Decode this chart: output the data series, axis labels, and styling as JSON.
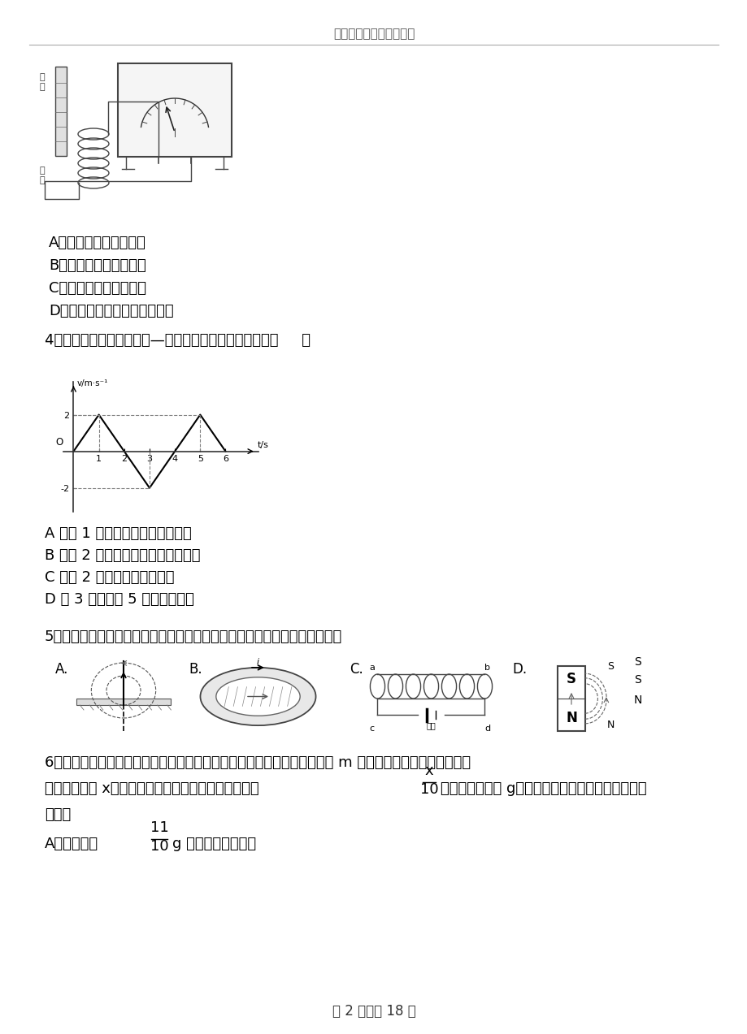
{
  "bg_color": "#ffffff",
  "header_text": "高考模式考试试卷解析版",
  "page_footer": "第 2 页，共 18 页",
  "options_q3": [
    "A．磁铁静止在线圈上方",
    "B．磁铁静止在线圈右侧",
    "C．磁铁静止在线圈里面",
    "D．磁铁插入或抽出线圈的过程"
  ],
  "q4_text": "4．质点作直线运动的速度—时间图像如图所示，该质点（     ）",
  "vt_graph": {
    "t_values": [
      0,
      1,
      3,
      5,
      6
    ],
    "v_values": [
      0,
      2,
      -2,
      2,
      0
    ],
    "xlim": [
      -0.3,
      7.2
    ],
    "ylim": [
      -3.2,
      3.5
    ],
    "xticks": [
      1,
      2,
      3,
      4,
      5,
      6
    ],
    "xlabel": "t/s",
    "ylabel": "v/m·s⁻¹",
    "dashed_t": [
      1,
      3,
      5
    ],
    "dashed_v": [
      2,
      -2,
      2
    ]
  },
  "options_q4": [
    "A 在第 1 秒末速度方向发生了改变",
    "B 在第 2 秒末加速度方向发生了改变",
    "C 在前 2 秒内发生的位移为零",
    "D 第 3 秒末和第 5 秒的位置相同"
  ],
  "q5_text": "5．关于电流激发的磁场，下列四个图中，磁场方向跟电流方向标注正确的是",
  "font_color": "#000000"
}
